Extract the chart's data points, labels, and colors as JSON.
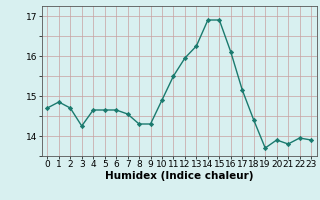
{
  "x": [
    0,
    1,
    2,
    3,
    4,
    5,
    6,
    7,
    8,
    9,
    10,
    11,
    12,
    13,
    14,
    15,
    16,
    17,
    18,
    19,
    20,
    21,
    22,
    23
  ],
  "y": [
    14.7,
    14.85,
    14.7,
    14.25,
    14.65,
    14.65,
    14.65,
    14.55,
    14.3,
    14.3,
    14.9,
    15.5,
    15.95,
    16.25,
    16.9,
    16.9,
    16.1,
    15.15,
    14.4,
    13.7,
    13.9,
    13.8,
    13.95,
    13.9
  ],
  "line_color": "#1a7a6e",
  "marker": "D",
  "marker_size": 2.2,
  "line_width": 1.0,
  "bg_color": "#d8f0f0",
  "grid_color": "#c8a0a0",
  "xlabel": "Humidex (Indice chaleur)",
  "xlabel_fontsize": 7.5,
  "ylim": [
    13.5,
    17.25
  ],
  "yticks": [
    14,
    15,
    16,
    17
  ],
  "xticks": [
    0,
    1,
    2,
    3,
    4,
    5,
    6,
    7,
    8,
    9,
    10,
    11,
    12,
    13,
    14,
    15,
    16,
    17,
    18,
    19,
    20,
    21,
    22,
    23
  ],
  "tick_fontsize": 6.5
}
